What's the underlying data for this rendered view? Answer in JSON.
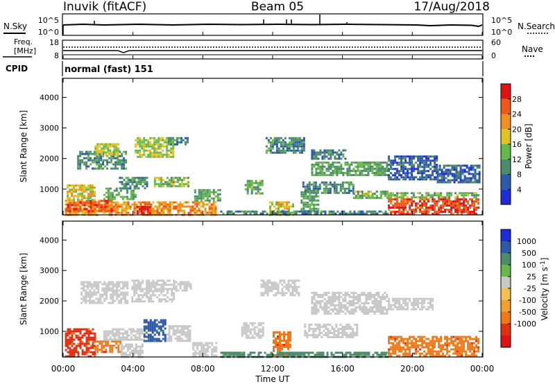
{
  "header": {
    "station": "Inuvik (fitACF)",
    "beam": "Beam 05",
    "date": "17/Aug/2018"
  },
  "noise_panel": {
    "left_label": "N.Sky",
    "left_ticks": [
      "10^5",
      "10^0"
    ],
    "right_label": "N.Search",
    "right_ticks": [
      "10^5",
      "10^0"
    ]
  },
  "freq_panel": {
    "left_label_line1": "Freq.",
    "left_label_line2": "[MHz]",
    "left_ticks": [
      "18",
      "8"
    ],
    "right_label": "Nave",
    "right_ticks": [
      "60",
      "0"
    ]
  },
  "cpid": {
    "label": "CPID",
    "value": "normal (fast) 151"
  },
  "x_axis": {
    "label": "Time UT",
    "ticks": [
      "00:00",
      "04:00",
      "08:00",
      "12:00",
      "16:00",
      "20:00",
      "00:00"
    ]
  },
  "colors": {
    "power": [
      "#1e2cd8",
      "#2f5aa8",
      "#4c8c6c",
      "#66b84a",
      "#e0c226",
      "#f09020",
      "#ee5818",
      "#dc1414"
    ],
    "velocity_positive": [
      "#1e2cd8",
      "#2f5aa8",
      "#4c8c6c",
      "#66b84a"
    ],
    "velocity_gs": "#c8c8c8",
    "velocity_negative": [
      "#f0c050",
      "#f0a030",
      "#f07818",
      "#e03014",
      "#dc1414"
    ]
  },
  "chart_data": [
    {
      "type": "heatmap",
      "title": "",
      "ylabel": "Slant Range [km]",
      "xlabel": "",
      "x_range_hours": [
        0,
        24
      ],
      "ylim": [
        180,
        4600
      ],
      "yticks": [
        1000,
        2000,
        3000,
        4000
      ],
      "colorbar": {
        "label": "Power [dB]",
        "ticks": [
          4,
          8,
          12,
          16,
          20,
          24,
          28
        ],
        "range": [
          0,
          32
        ]
      },
      "regions": [
        {
          "t0": 0.1,
          "t1": 8.8,
          "r0": 180,
          "r1": 600,
          "v": 22
        },
        {
          "t0": 0.1,
          "t1": 2.8,
          "r0": 300,
          "r1": 650,
          "v": 26
        },
        {
          "t0": 4.2,
          "t1": 5.0,
          "r0": 180,
          "r1": 450,
          "v": 30
        },
        {
          "t0": 0.2,
          "t1": 1.8,
          "r0": 650,
          "r1": 1150,
          "v": 18
        },
        {
          "t0": 2.3,
          "t1": 4.2,
          "r0": 700,
          "r1": 1050,
          "v": 12
        },
        {
          "t0": 3.2,
          "t1": 4.8,
          "r0": 1050,
          "r1": 1400,
          "v": 10
        },
        {
          "t0": 5.2,
          "t1": 7.2,
          "r0": 1100,
          "r1": 1400,
          "v": 14
        },
        {
          "t0": 7.5,
          "t1": 9.0,
          "r0": 600,
          "r1": 1000,
          "v": 12
        },
        {
          "t0": 0.8,
          "t1": 3.6,
          "r0": 1700,
          "r1": 2250,
          "v": 10
        },
        {
          "t0": 1.8,
          "t1": 3.2,
          "r0": 2100,
          "r1": 2500,
          "v": 16
        },
        {
          "t0": 4.1,
          "t1": 6.3,
          "r0": 2050,
          "r1": 2700,
          "v": 16
        },
        {
          "t0": 6.0,
          "t1": 7.1,
          "r0": 2450,
          "r1": 2700,
          "v": 10
        },
        {
          "t0": 10.4,
          "t1": 11.4,
          "r0": 850,
          "r1": 1300,
          "v": 13
        },
        {
          "t0": 11.8,
          "t1": 13.2,
          "r0": 180,
          "r1": 600,
          "v": 18
        },
        {
          "t0": 13.6,
          "t1": 14.6,
          "r0": 250,
          "r1": 1000,
          "v": 12
        },
        {
          "t0": 11.6,
          "t1": 13.8,
          "r0": 2200,
          "r1": 2700,
          "v": 9
        },
        {
          "t0": 13.7,
          "t1": 16.6,
          "r0": 900,
          "r1": 1250,
          "v": 10
        },
        {
          "t0": 16.6,
          "t1": 18.6,
          "r0": 700,
          "r1": 950,
          "v": 14
        },
        {
          "t0": 14.2,
          "t1": 18.6,
          "r0": 1450,
          "r1": 1900,
          "v": 12
        },
        {
          "t0": 14.2,
          "t1": 16.2,
          "r0": 2000,
          "r1": 2300,
          "v": 9
        },
        {
          "t0": 9.0,
          "t1": 18.6,
          "r0": 180,
          "r1": 300,
          "v": 9
        },
        {
          "t0": 18.6,
          "t1": 23.8,
          "r0": 180,
          "r1": 700,
          "v": 27
        },
        {
          "t0": 18.6,
          "t1": 23.8,
          "r0": 700,
          "r1": 900,
          "v": 14
        },
        {
          "t0": 18.6,
          "t1": 21.4,
          "r0": 1350,
          "r1": 2100,
          "v": 6
        },
        {
          "t0": 21.4,
          "t1": 23.8,
          "r0": 1250,
          "r1": 1800,
          "v": 7
        }
      ]
    },
    {
      "type": "heatmap",
      "title": "",
      "ylabel": "Slant Range [km]",
      "xlabel": "Time UT",
      "x_range_hours": [
        0,
        24
      ],
      "ylim": [
        180,
        4600
      ],
      "yticks": [
        1000,
        2000,
        3000,
        4000
      ],
      "colorbar": {
        "label": "Velocity [m s^-1]",
        "ticks": [
          "1000",
          "500",
          "100",
          "25",
          "-25",
          "-100",
          "-500",
          "-1000"
        ]
      },
      "regions": [
        {
          "t0": 0.1,
          "t1": 1.8,
          "r0": 180,
          "r1": 1100,
          "v": -600
        },
        {
          "t0": 1.8,
          "t1": 3.3,
          "r0": 300,
          "r1": 700,
          "v": -400
        },
        {
          "t0": 3.3,
          "t1": 4.6,
          "r0": 180,
          "r1": 600,
          "v": 0
        },
        {
          "t0": 2.3,
          "t1": 4.6,
          "r0": 700,
          "r1": 1100,
          "v": 0
        },
        {
          "t0": 4.6,
          "t1": 5.9,
          "r0": 700,
          "r1": 1400,
          "v": 150
        },
        {
          "t0": 5.9,
          "t1": 7.3,
          "r0": 700,
          "r1": 1200,
          "v": 0
        },
        {
          "t0": 7.4,
          "t1": 8.8,
          "r0": 180,
          "r1": 650,
          "v": 0
        },
        {
          "t0": 1.0,
          "t1": 3.7,
          "r0": 1900,
          "r1": 2650,
          "v": 0
        },
        {
          "t0": 3.9,
          "t1": 6.4,
          "r0": 2000,
          "r1": 2700,
          "v": 0
        },
        {
          "t0": 6.3,
          "t1": 7.3,
          "r0": 2350,
          "r1": 2650,
          "v": 0
        },
        {
          "t0": 10.2,
          "t1": 11.5,
          "r0": 800,
          "r1": 1300,
          "v": 0
        },
        {
          "t0": 11.3,
          "t1": 13.5,
          "r0": 2200,
          "r1": 2700,
          "v": 0
        },
        {
          "t0": 12.0,
          "t1": 13.0,
          "r0": 180,
          "r1": 1000,
          "v": -400
        },
        {
          "t0": 13.8,
          "t1": 16.8,
          "r0": 780,
          "r1": 1250,
          "v": 0
        },
        {
          "t0": 14.2,
          "t1": 18.6,
          "r0": 1550,
          "r1": 2300,
          "v": 0
        },
        {
          "t0": 9.0,
          "t1": 18.6,
          "r0": 180,
          "r1": 330,
          "v": 80
        },
        {
          "t0": 18.6,
          "t1": 23.8,
          "r0": 180,
          "r1": 850,
          "v": -450
        },
        {
          "t0": 18.6,
          "t1": 21.2,
          "r0": 1700,
          "r1": 2100,
          "v": 0
        }
      ]
    }
  ]
}
